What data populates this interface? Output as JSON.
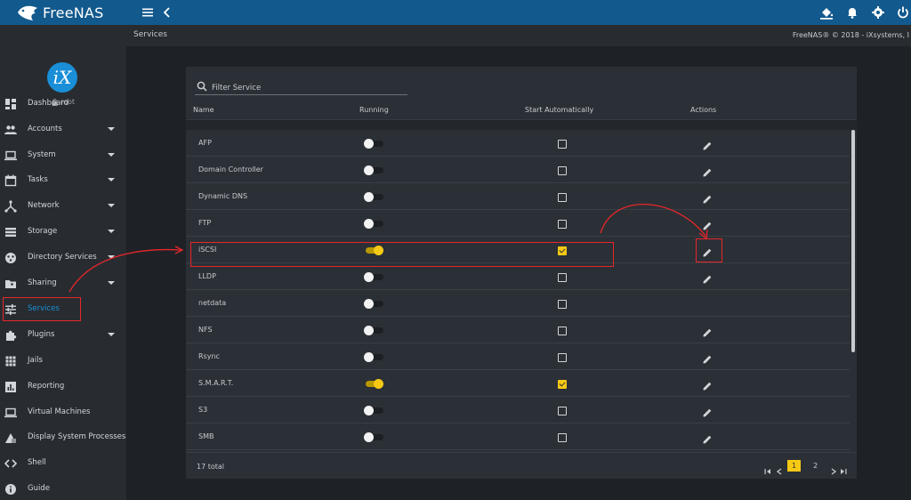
{
  "app": {
    "brand": "FreeNAS",
    "copyright": "FreeNAS® © 2018 - iXsystems, I"
  },
  "topbar": {
    "icons": [
      "menu-icon",
      "chevron-left-icon",
      "paint-bucket-icon",
      "bell-icon",
      "gear-icon",
      "power-icon"
    ]
  },
  "sidebar": {
    "badge": "iX",
    "user": "root",
    "items": [
      {
        "label": "Dashboard",
        "icon": "dashboard-icon",
        "caret": false
      },
      {
        "label": "Accounts",
        "icon": "accounts-icon",
        "caret": true
      },
      {
        "label": "System",
        "icon": "laptop-icon",
        "caret": true
      },
      {
        "label": "Tasks",
        "icon": "calendar-icon",
        "caret": true
      },
      {
        "label": "Network",
        "icon": "network-icon",
        "caret": true
      },
      {
        "label": "Storage",
        "icon": "storage-icon",
        "caret": true
      },
      {
        "label": "Directory Services",
        "icon": "directory-icon",
        "caret": true
      },
      {
        "label": "Sharing",
        "icon": "folder-shared-icon",
        "caret": true
      },
      {
        "label": "Services",
        "icon": "tune-icon",
        "caret": false,
        "active": true
      },
      {
        "label": "Plugins",
        "icon": "puzzle-icon",
        "caret": true
      },
      {
        "label": "Jails",
        "icon": "grid-icon",
        "caret": false
      },
      {
        "label": "Reporting",
        "icon": "chart-icon",
        "caret": false
      },
      {
        "label": "Virtual Machines",
        "icon": "laptop-icon",
        "caret": false
      },
      {
        "label": "Display System Processes",
        "icon": "processes-icon",
        "caret": false
      },
      {
        "label": "Shell",
        "icon": "code-icon",
        "caret": false
      },
      {
        "label": "Guide",
        "icon": "info-icon",
        "caret": false
      }
    ]
  },
  "breadcrumb": {
    "title": "Services"
  },
  "table": {
    "filter_placeholder": "Filter Service",
    "columns": {
      "name": "Name",
      "running": "Running",
      "start": "Start Automatically",
      "actions": "Actions"
    },
    "rows": [
      {
        "name": "AFP",
        "running": false,
        "start": false,
        "editable": true
      },
      {
        "name": "Domain Controller",
        "running": false,
        "start": false,
        "editable": true
      },
      {
        "name": "Dynamic DNS",
        "running": false,
        "start": false,
        "editable": true
      },
      {
        "name": "FTP",
        "running": false,
        "start": false,
        "editable": true
      },
      {
        "name": "iSCSI",
        "running": true,
        "start": true,
        "editable": true
      },
      {
        "name": "LLDP",
        "running": false,
        "start": false,
        "editable": true
      },
      {
        "name": "netdata",
        "running": false,
        "start": false,
        "editable": false
      },
      {
        "name": "NFS",
        "running": false,
        "start": false,
        "editable": true
      },
      {
        "name": "Rsync",
        "running": false,
        "start": false,
        "editable": true
      },
      {
        "name": "S.M.A.R.T.",
        "running": true,
        "start": true,
        "editable": true
      },
      {
        "name": "S3",
        "running": false,
        "start": false,
        "editable": true
      },
      {
        "name": "SMB",
        "running": false,
        "start": false,
        "editable": true
      }
    ],
    "total": "17 total",
    "pages": [
      "1",
      "2"
    ],
    "current_page": "1"
  },
  "colors": {
    "topbar": "#12598d",
    "accent": "#f6c915",
    "highlight": "#e8262a",
    "active_nav": "#1a8fd8"
  }
}
